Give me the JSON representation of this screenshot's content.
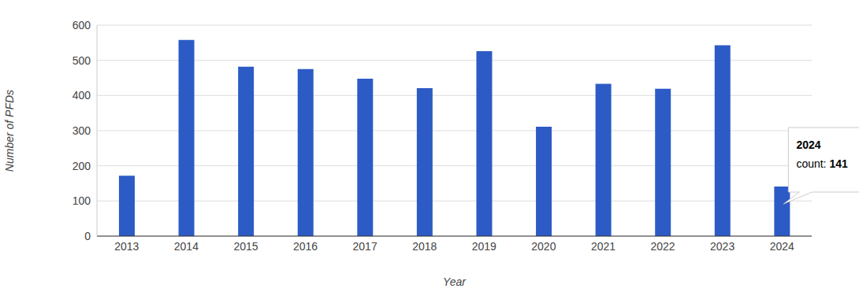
{
  "chart_data": {
    "type": "bar",
    "x_label": "Year",
    "y_label": "Number of PFDs",
    "categories": [
      "2013",
      "2014",
      "2015",
      "2016",
      "2017",
      "2018",
      "2019",
      "2020",
      "2021",
      "2022",
      "2023",
      "2024"
    ],
    "values": [
      172,
      558,
      482,
      475,
      448,
      421,
      526,
      311,
      433,
      419,
      543,
      141
    ],
    "color": "#2d5bc6",
    "ylim": [
      0,
      600
    ],
    "yticks": [
      0,
      100,
      200,
      300,
      400,
      500,
      600
    ],
    "grid": true,
    "tooltip": {
      "category": "2024",
      "label": "count:",
      "value": 141
    }
  }
}
